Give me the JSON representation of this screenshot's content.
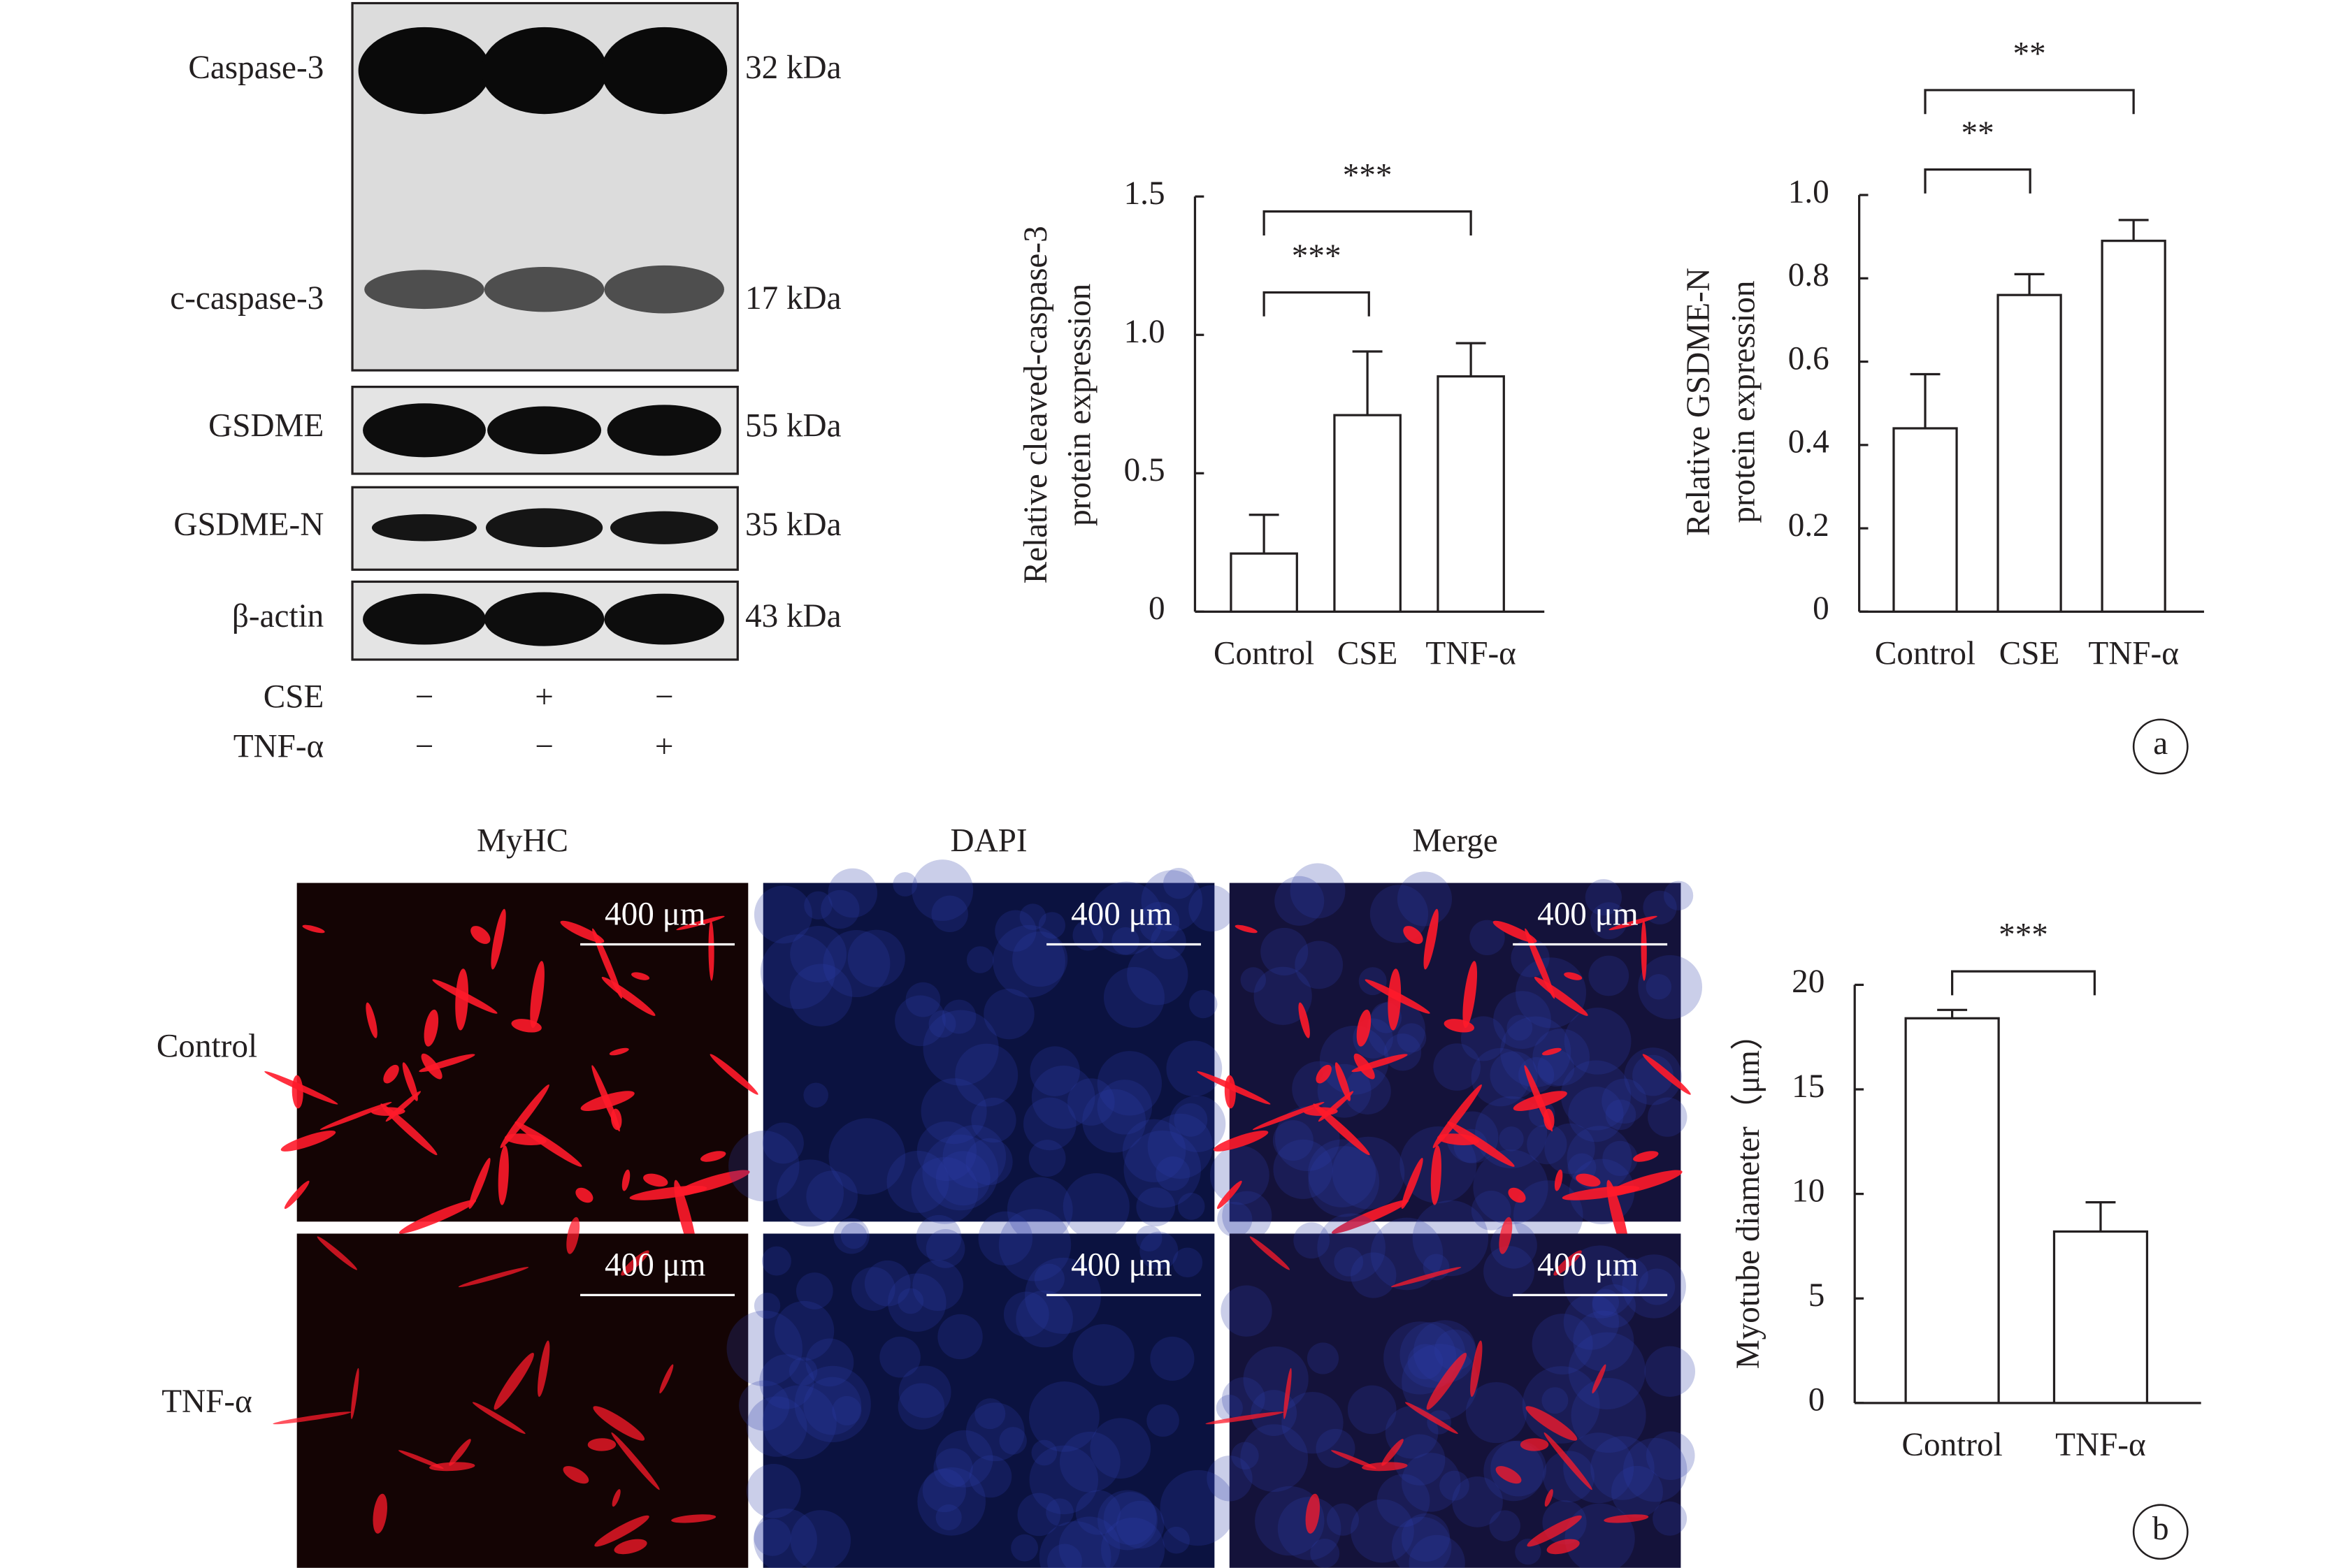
{
  "chart_data": [
    {
      "type": "bar",
      "ylabel": [
        "Relative cleaved-caspase-3",
        "protein expression"
      ],
      "categories": [
        "Control",
        "CSE",
        "TNF-α"
      ],
      "values": [
        0.21,
        0.71,
        0.85
      ],
      "errors": [
        0.14,
        0.23,
        0.12
      ],
      "ylim": [
        0,
        1.5
      ],
      "yticks": [
        0,
        0.5,
        {
          "value": 1,
          "label": "1.0"
        },
        1.5
      ],
      "significance": [
        "***",
        "***"
      ]
    },
    {
      "type": "bar",
      "ylabel": [
        "Relative GSDME-N",
        "protein expression"
      ],
      "categories": [
        "Control",
        "CSE",
        "TNF-α"
      ],
      "values": [
        0.44,
        0.76,
        0.89
      ],
      "errors": [
        0.13,
        0.05,
        0.05
      ],
      "ylim": [
        0,
        1
      ],
      "yticks": [
        0,
        0.2,
        0.4,
        0.6,
        0.8,
        {
          "value": 1,
          "label": "1.0"
        }
      ],
      "significance": [
        "**",
        "**"
      ]
    },
    {
      "type": "bar",
      "ylabel": [
        "Myotube diameter（μm）"
      ],
      "categories": [
        "Control",
        "TNF-α"
      ],
      "values": [
        18.4,
        8.2
      ],
      "errors": [
        0.4,
        1.4
      ],
      "ylim": [
        0,
        20
      ],
      "yticks": [
        0,
        5,
        10,
        15,
        20
      ],
      "significance": [
        "***"
      ]
    }
  ],
  "panels": [
    "a",
    "b"
  ],
  "blot": {
    "bands": [
      {
        "name": "Caspase-3",
        "size": "32 kDa"
      },
      {
        "name": "c-caspase-3",
        "size": "17 kDa"
      },
      {
        "name": "GSDME",
        "size": "55 kDa"
      },
      {
        "name": "GSDME-N",
        "size": "35 kDa"
      },
      {
        "name": "β-actin",
        "size": "43 kDa"
      }
    ],
    "treatments": [
      {
        "name": "CSE",
        "signs": [
          "−",
          "+",
          "−"
        ]
      },
      {
        "name": "TNF-α",
        "signs": [
          "−",
          "−",
          "+"
        ]
      }
    ]
  },
  "microscopy": {
    "columns": [
      "MyHC",
      "DAPI",
      "Merge"
    ],
    "rows": [
      "Control",
      "TNF-α"
    ],
    "scale_bar": "400 μm"
  }
}
